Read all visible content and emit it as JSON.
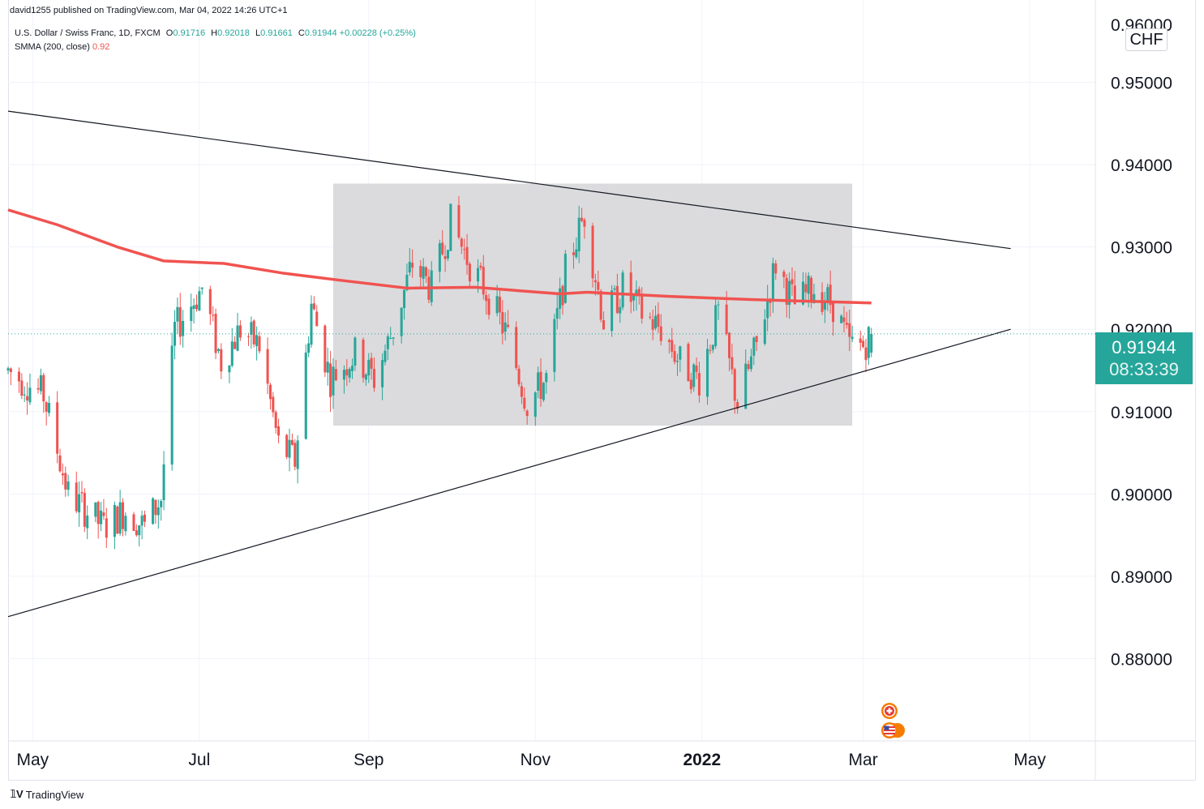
{
  "header": {
    "credit": "david1255 published on TradingView.com, Mar 04, 2022 14:26 UTC+1",
    "symbol": "U.S. Dollar / Swiss Franc, 1D, FXCM",
    "open_label": "O",
    "open": "0.91716",
    "high_label": "H",
    "high": "0.92018",
    "low_label": "L",
    "low": "0.91661",
    "close_label": "C",
    "close": "0.91944",
    "change": "+0.00228 (+0.25%)",
    "indicator": "SMMA (200, close)",
    "indicator_value": "0.92"
  },
  "currency": "CHF",
  "last_price": {
    "price": "0.91944",
    "countdown": "08:33:39"
  },
  "brand": "TradingView",
  "colors": {
    "up": "#26a69a",
    "down": "#ef5350",
    "smma": "#f05350",
    "box": "#d9d9db",
    "trendline": "#131722",
    "price_line": "#26a69a"
  },
  "icons": [
    "swiss-flag-icon",
    "us-flag-icon"
  ],
  "chart_data": {
    "type": "candlestick",
    "title": "U.S. Dollar / Swiss Franc, 1D, FXCM",
    "ylim": [
      0.87,
      0.96
    ],
    "y_ticks": [
      "0.88000",
      "0.89000",
      "0.90000",
      "0.91000",
      "0.92000",
      "0.93000",
      "0.94000",
      "0.95000"
    ],
    "y_tick_values": [
      0.88,
      0.89,
      0.9,
      0.91,
      0.92,
      0.93,
      0.94,
      0.95
    ],
    "x_range": [
      "2021-04-22",
      "2022-05-25"
    ],
    "x_ticks": [
      {
        "label": "May",
        "date": "2021-05-01"
      },
      {
        "label": "Jul",
        "date": "2021-07-01"
      },
      {
        "label": "Sep",
        "date": "2021-09-01"
      },
      {
        "label": "Nov",
        "date": "2021-11-01"
      },
      {
        "label": "2022",
        "date": "2022-01-01",
        "bold": true
      },
      {
        "label": "Mar",
        "date": "2022-03-01"
      },
      {
        "label": "May",
        "date": "2022-05-01"
      }
    ],
    "keypoints": [
      [
        "2021-04-22",
        0.915
      ],
      [
        "2021-05-05",
        0.912
      ],
      [
        "2021-05-14",
        0.9
      ],
      [
        "2021-05-27",
        0.896
      ],
      [
        "2021-06-04",
        0.898
      ],
      [
        "2021-06-11",
        0.896
      ],
      [
        "2021-06-17",
        0.8995
      ],
      [
        "2021-06-22",
        0.92
      ],
      [
        "2021-07-02",
        0.925
      ],
      [
        "2021-07-09",
        0.916
      ],
      [
        "2021-07-16",
        0.92
      ],
      [
        "2021-07-23",
        0.918
      ],
      [
        "2021-07-30",
        0.906
      ],
      [
        "2021-08-05",
        0.904
      ],
      [
        "2021-08-11",
        0.923
      ],
      [
        "2021-08-18",
        0.914
      ],
      [
        "2021-08-27",
        0.917
      ],
      [
        "2021-09-03",
        0.914
      ],
      [
        "2021-09-10",
        0.92
      ],
      [
        "2021-09-17",
        0.928
      ],
      [
        "2021-09-24",
        0.925
      ],
      [
        "2021-10-01",
        0.933
      ],
      [
        "2021-10-08",
        0.928
      ],
      [
        "2021-10-15",
        0.924
      ],
      [
        "2021-10-22",
        0.919
      ],
      [
        "2021-10-29",
        0.911
      ],
      [
        "2021-11-05",
        0.914
      ],
      [
        "2021-11-12",
        0.927
      ],
      [
        "2021-11-19",
        0.934
      ],
      [
        "2021-11-26",
        0.921
      ],
      [
        "2021-12-03",
        0.925
      ],
      [
        "2021-12-10",
        0.922
      ],
      [
        "2021-12-17",
        0.92
      ],
      [
        "2021-12-24",
        0.916
      ],
      [
        "2021-12-31",
        0.914
      ],
      [
        "2022-01-07",
        0.922
      ],
      [
        "2022-01-14",
        0.911
      ],
      [
        "2022-01-21",
        0.918
      ],
      [
        "2022-01-28",
        0.928
      ],
      [
        "2022-02-04",
        0.923
      ],
      [
        "2022-02-11",
        0.925
      ],
      [
        "2022-02-18",
        0.923
      ],
      [
        "2022-02-24",
        0.918
      ],
      [
        "2022-03-01",
        0.918
      ],
      [
        "2022-03-04",
        0.9194
      ]
    ],
    "ohlc_sample": [
      {
        "date": "2022-03-04",
        "open": 0.91716,
        "high": 0.92018,
        "low": 0.91661,
        "close": 0.91944
      }
    ],
    "series": [
      {
        "name": "SMMA (200, close)",
        "points": [
          [
            "2021-04-22",
            0.9345
          ],
          [
            "2021-05-10",
            0.9327
          ],
          [
            "2021-06-01",
            0.93
          ],
          [
            "2021-06-18",
            0.9283
          ],
          [
            "2021-07-10",
            0.928
          ],
          [
            "2021-08-01",
            0.9268
          ],
          [
            "2021-08-23",
            0.9259
          ],
          [
            "2021-09-15",
            0.925
          ],
          [
            "2021-10-10",
            0.9251
          ],
          [
            "2021-11-10",
            0.9243
          ],
          [
            "2021-11-20",
            0.9245
          ],
          [
            "2021-12-20",
            0.924
          ],
          [
            "2022-01-20",
            0.9236
          ],
          [
            "2022-02-10",
            0.9234
          ],
          [
            "2022-03-04",
            0.9232
          ]
        ]
      }
    ],
    "trendlines": [
      {
        "from": [
          "2021-04-22",
          0.9465
        ],
        "to": [
          "2022-04-24",
          0.9298
        ]
      },
      {
        "from": [
          "2021-04-22",
          0.8851
        ],
        "to": [
          "2022-04-24",
          0.92
        ]
      }
    ],
    "range_box": {
      "from": "2021-08-19",
      "to": "2022-02-25",
      "low": 0.9083,
      "high": 0.9377
    },
    "last_price": 0.91944,
    "grid": true,
    "axis_position": "right"
  }
}
